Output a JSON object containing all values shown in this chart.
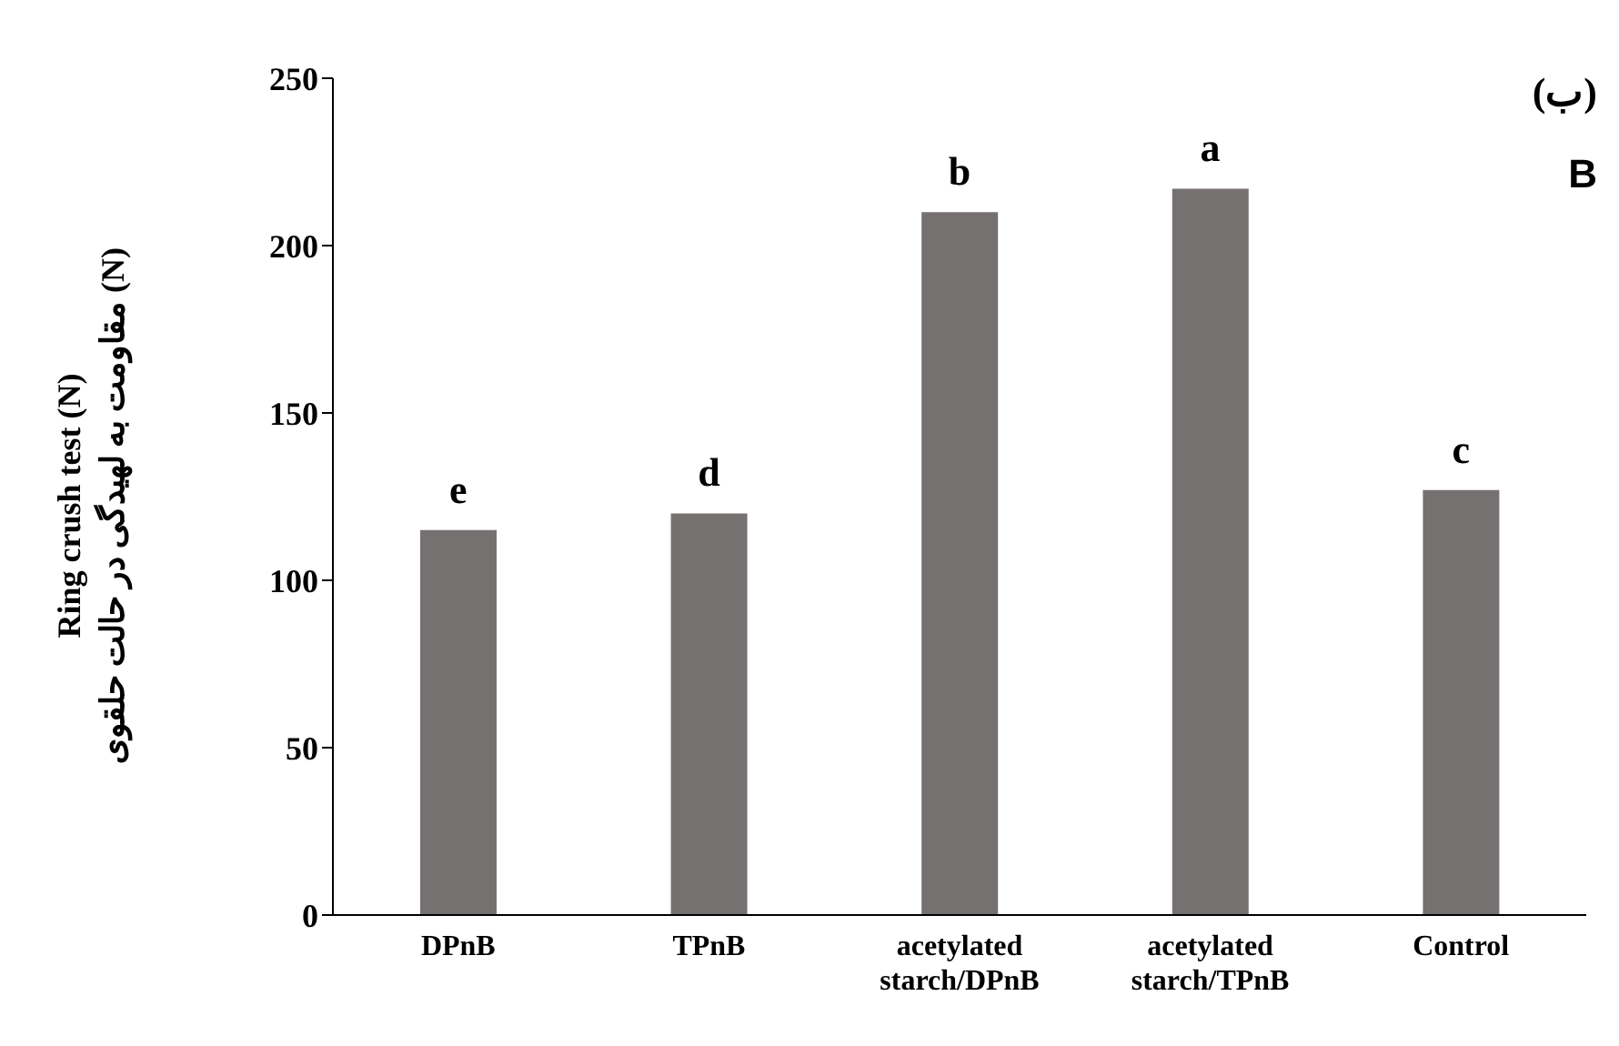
{
  "chart_data": {
    "type": "bar",
    "ylabel": "Ring crush test (N)\nمقاومت به لهیدگی در حالت حلقوی (N)",
    "categories": [
      "DPnB",
      "TPnB",
      "acetylated starch/DPnB",
      "acetylated starch/TPnB",
      "Control"
    ],
    "values": [
      115,
      120,
      210,
      217,
      127
    ],
    "color": "#767171",
    "ylim": [
      0,
      250
    ],
    "yticks": [
      0,
      50,
      100,
      150,
      200,
      250
    ],
    "grid": false,
    "annotations": [
      {
        "text": "e",
        "x": "DPnB",
        "y": 115
      },
      {
        "text": "d",
        "x": "TPnB",
        "y": 120
      },
      {
        "text": "b",
        "x": "acetylated starch/DPnB",
        "y": 210
      },
      {
        "text": "a",
        "x": "acetylated starch/TPnB",
        "y": 217
      },
      {
        "text": "c",
        "x": "Control",
        "y": 127
      },
      "(ب)",
      "B"
    ]
  }
}
